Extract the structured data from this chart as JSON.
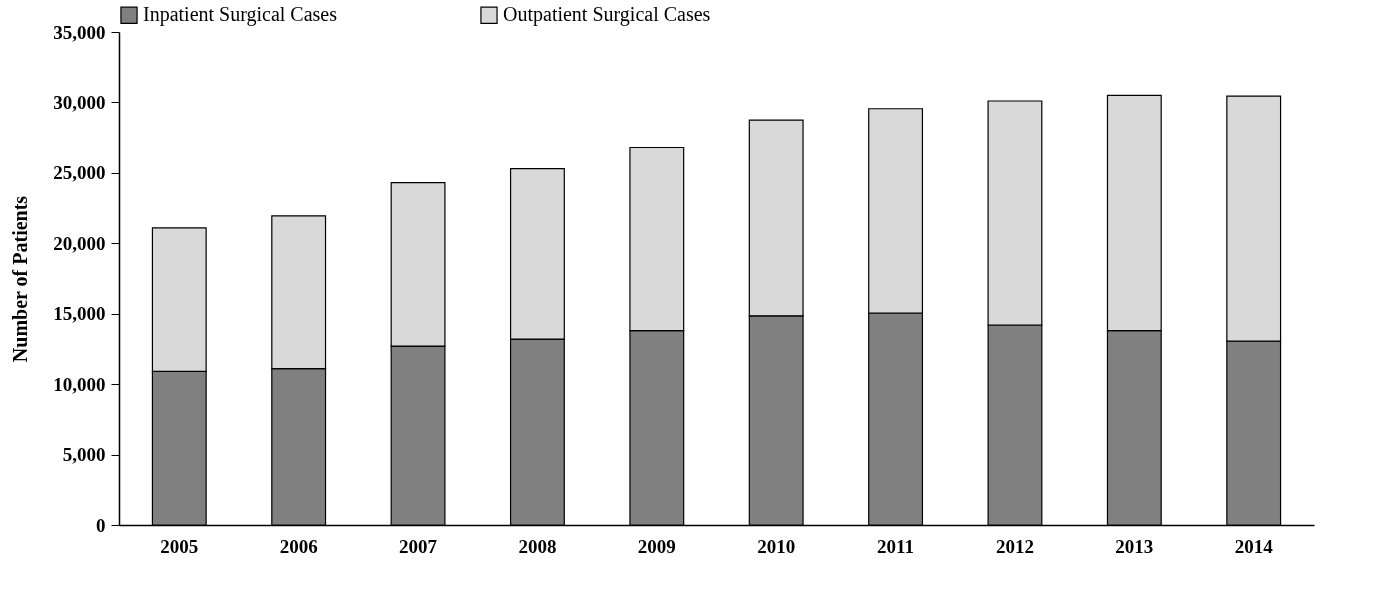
{
  "chart_data": {
    "type": "bar",
    "stacked": true,
    "ylabel": "Number of Patients",
    "categories": [
      "2005",
      "2006",
      "2007",
      "2008",
      "2009",
      "2010",
      "2011",
      "2012",
      "2013",
      "2014"
    ],
    "series": [
      {
        "name": "Inpatient Surgical Cases",
        "color": "#808080",
        "values": [
          10900,
          11100,
          12700,
          13200,
          13800,
          14850,
          15050,
          14200,
          13800,
          13050
        ]
      },
      {
        "name": "Outpatient Surgical Cases",
        "color": "#d9d9d9",
        "values": [
          10200,
          10850,
          11600,
          12100,
          13000,
          13900,
          14500,
          15900,
          16700,
          17400
        ]
      }
    ],
    "ylim": [
      0,
      35000
    ],
    "yticks": [
      0,
      {
        "value": 5000,
        "label": "5,000"
      },
      {
        "value": 10000,
        "label": "10,000"
      },
      {
        "value": 15000,
        "label": "15,000"
      },
      {
        "value": 20000,
        "label": "20,000"
      },
      {
        "value": 25000,
        "label": "25,000"
      },
      {
        "value": 30000,
        "label": "30,000"
      },
      {
        "value": 35000,
        "label": "35,000"
      }
    ],
    "legend": "top",
    "grid": false
  }
}
